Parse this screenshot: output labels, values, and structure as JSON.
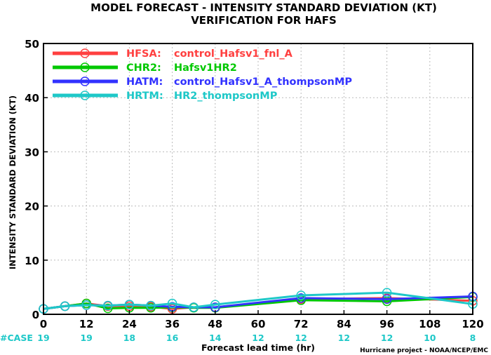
{
  "chart_data": {
    "type": "line",
    "title": "MODEL FORECAST - INTENSITY STANDARD DEVIATION (KT)",
    "subtitle": "VERIFICATION FOR HAFS",
    "xlabel": "Forecast lead time (hr)",
    "ylabel": "INTENSITY STANDARD DEVIATION (KT)",
    "xlim": [
      0,
      120
    ],
    "ylim": [
      0,
      50
    ],
    "x_ticks": [
      0,
      12,
      24,
      36,
      48,
      60,
      72,
      84,
      96,
      108,
      120
    ],
    "y_ticks": [
      0,
      10,
      20,
      30,
      40,
      50
    ],
    "grid": true,
    "legend_position": "top-left",
    "case_label": "#CASE",
    "case_counts": [
      "19",
      "19",
      "18",
      "16",
      "14",
      "12",
      "12",
      "12",
      "12",
      "10",
      "8"
    ],
    "credit": "Hurricane project - NOAA/NCEP/EMC",
    "series": [
      {
        "code": "HFSA:",
        "name": "control_Hafsv1_fnl_A",
        "color": "#ff4040",
        "x": [
          0,
          6,
          12,
          18,
          24,
          30,
          36,
          42,
          48,
          72,
          96,
          120
        ],
        "y": [
          1.0,
          1.5,
          2.0,
          1.5,
          1.5,
          1.4,
          1.0,
          1.3,
          1.3,
          2.8,
          3.0,
          2.5
        ]
      },
      {
        "code": "CHR2:",
        "name": "Hafsv1HR2",
        "color": "#00c800",
        "x": [
          0,
          6,
          12,
          18,
          24,
          30,
          36,
          42,
          48,
          72,
          96,
          120
        ],
        "y": [
          1.0,
          1.5,
          2.0,
          1.1,
          1.2,
          1.2,
          1.3,
          1.2,
          1.2,
          2.6,
          2.4,
          3.2
        ]
      },
      {
        "code": "HATM:",
        "name": "control_Hafsv1_A_thompsonMP",
        "color": "#3232ff",
        "x": [
          0,
          6,
          12,
          18,
          24,
          30,
          36,
          42,
          48,
          72,
          96,
          120
        ],
        "y": [
          1.0,
          1.5,
          1.7,
          1.6,
          1.8,
          1.6,
          1.4,
          1.3,
          1.3,
          3.0,
          2.8,
          3.3
        ]
      },
      {
        "code": "HRTM:",
        "name": "HR2_thompsonMP",
        "color": "#1ec8c8",
        "x": [
          0,
          6,
          12,
          18,
          24,
          30,
          36,
          42,
          48,
          72,
          96,
          120
        ],
        "y": [
          1.0,
          1.5,
          1.7,
          1.6,
          1.8,
          1.6,
          2.0,
          1.3,
          1.8,
          3.5,
          4.0,
          1.9
        ]
      }
    ]
  }
}
